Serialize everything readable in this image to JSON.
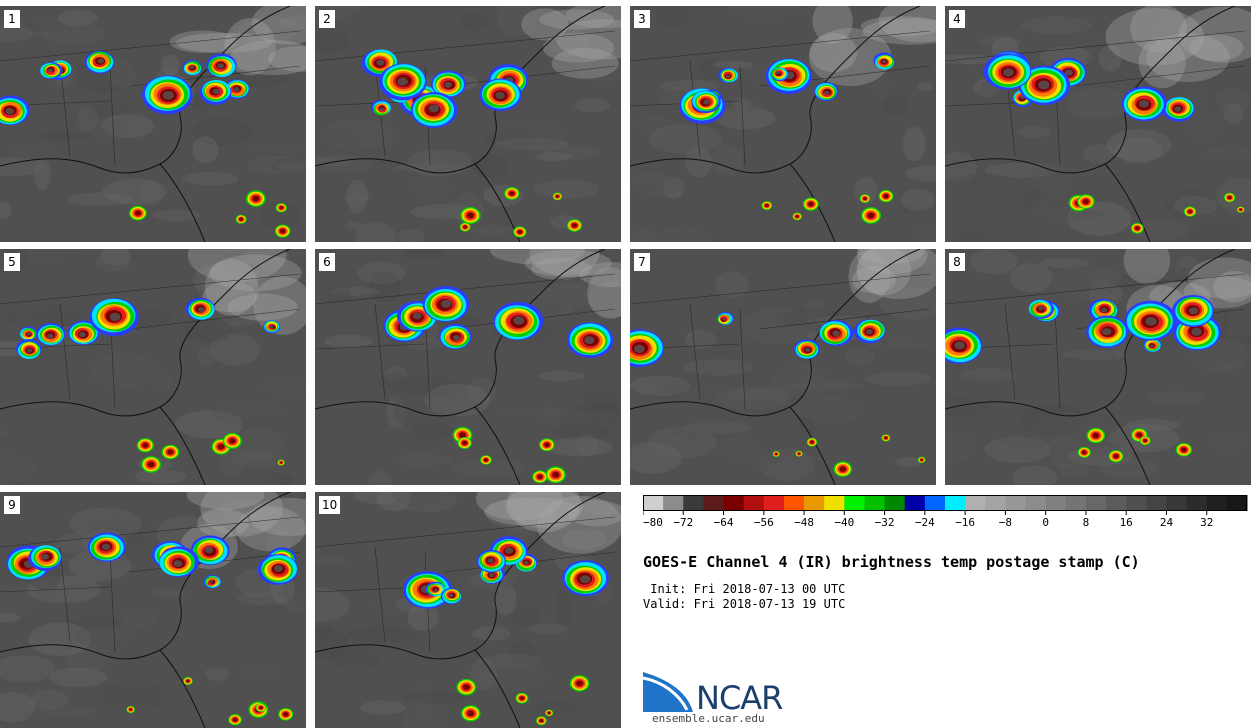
{
  "panels": [
    {
      "id": "1",
      "label": "1"
    },
    {
      "id": "2",
      "label": "2"
    },
    {
      "id": "3",
      "label": "3"
    },
    {
      "id": "4",
      "label": "4"
    },
    {
      "id": "5",
      "label": "5"
    },
    {
      "id": "6",
      "label": "6"
    },
    {
      "id": "7",
      "label": "7"
    },
    {
      "id": "8",
      "label": "8"
    },
    {
      "id": "9",
      "label": "9"
    },
    {
      "id": "10",
      "label": "10"
    }
  ],
  "colorbar": {
    "units": "C",
    "colors": [
      "#cfcfcf",
      "#8c8c8c",
      "#3a3a3a",
      "#5e1b1b",
      "#7a0000",
      "#b21010",
      "#e01e1e",
      "#ff5500",
      "#e89a00",
      "#f0e000",
      "#00f000",
      "#00c000",
      "#008800",
      "#0000a8",
      "#0066ff",
      "#00eeff",
      "#b0b0b0",
      "#a4a4a4",
      "#989898",
      "#8c8c8c",
      "#808080",
      "#747474",
      "#686868",
      "#5c5c5c",
      "#505050",
      "#444444",
      "#383838",
      "#2c2c2c",
      "#202020",
      "#181818"
    ],
    "tick_labels": [
      "−80",
      "−72",
      "−64",
      "−56",
      "−48",
      "−40",
      "−32",
      "−24",
      "−16",
      "−8",
      "0",
      "8",
      "16",
      "24",
      "32"
    ]
  },
  "title": "GOES-E Channel 4 (IR) brightness temp postage stamp (C)",
  "init": " Init: Fri 2018-07-13 00 UTC",
  "valid": "Valid: Fri 2018-07-13 19 UTC",
  "logo": {
    "name": "NCAR",
    "site": "ensemble.ucar.edu",
    "color": "#1f74c8"
  }
}
